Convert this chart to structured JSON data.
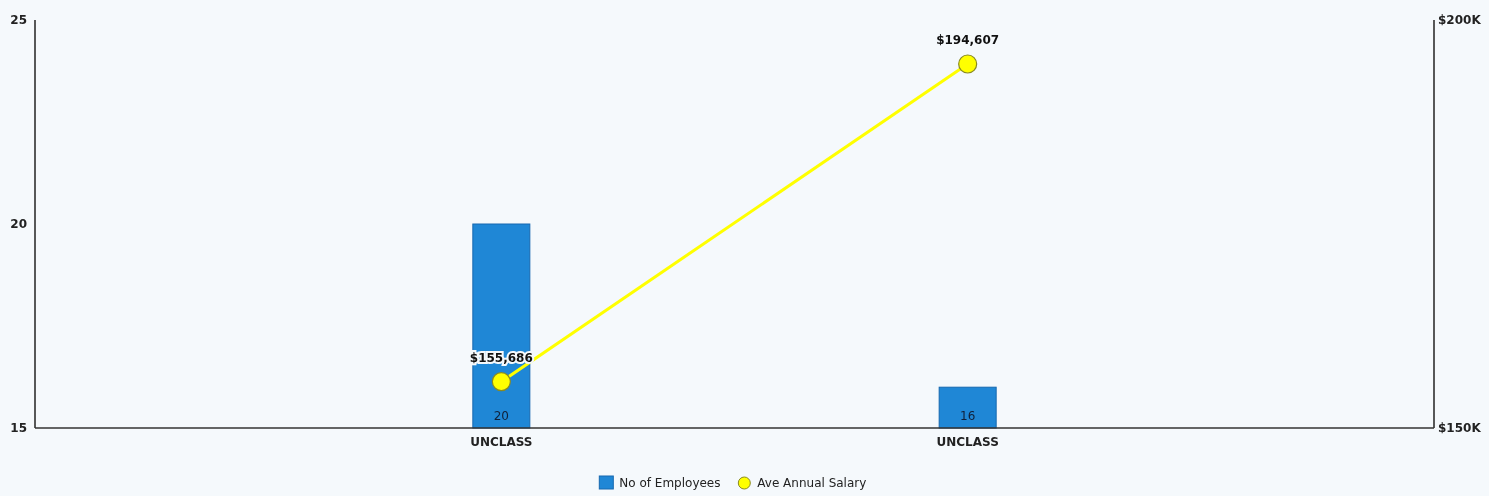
{
  "chart_data": {
    "type": "bar",
    "categories": [
      "UNCLASS",
      "UNCLASS"
    ],
    "series": [
      {
        "name": "No of Employees",
        "color": "#1f87d6",
        "values": [
          20,
          16
        ],
        "value_labels": [
          "20",
          "16"
        ]
      },
      {
        "name": "Ave Annual Salary",
        "type": "line",
        "axis": "y2",
        "color": "#ffff00",
        "values": [
          155686,
          194607
        ],
        "value_labels": [
          "$155,686",
          "$194,607"
        ],
        "marker": "circle"
      }
    ],
    "ylim": [
      15,
      25
    ],
    "yticks": [
      15,
      20,
      25
    ],
    "y2lim": [
      150000,
      200000
    ],
    "y2ticks": [
      {
        "value": 150000,
        "label": "$150K"
      },
      {
        "value": 200000,
        "label": "$200K"
      }
    ],
    "legend": "bottom",
    "grid": false
  }
}
